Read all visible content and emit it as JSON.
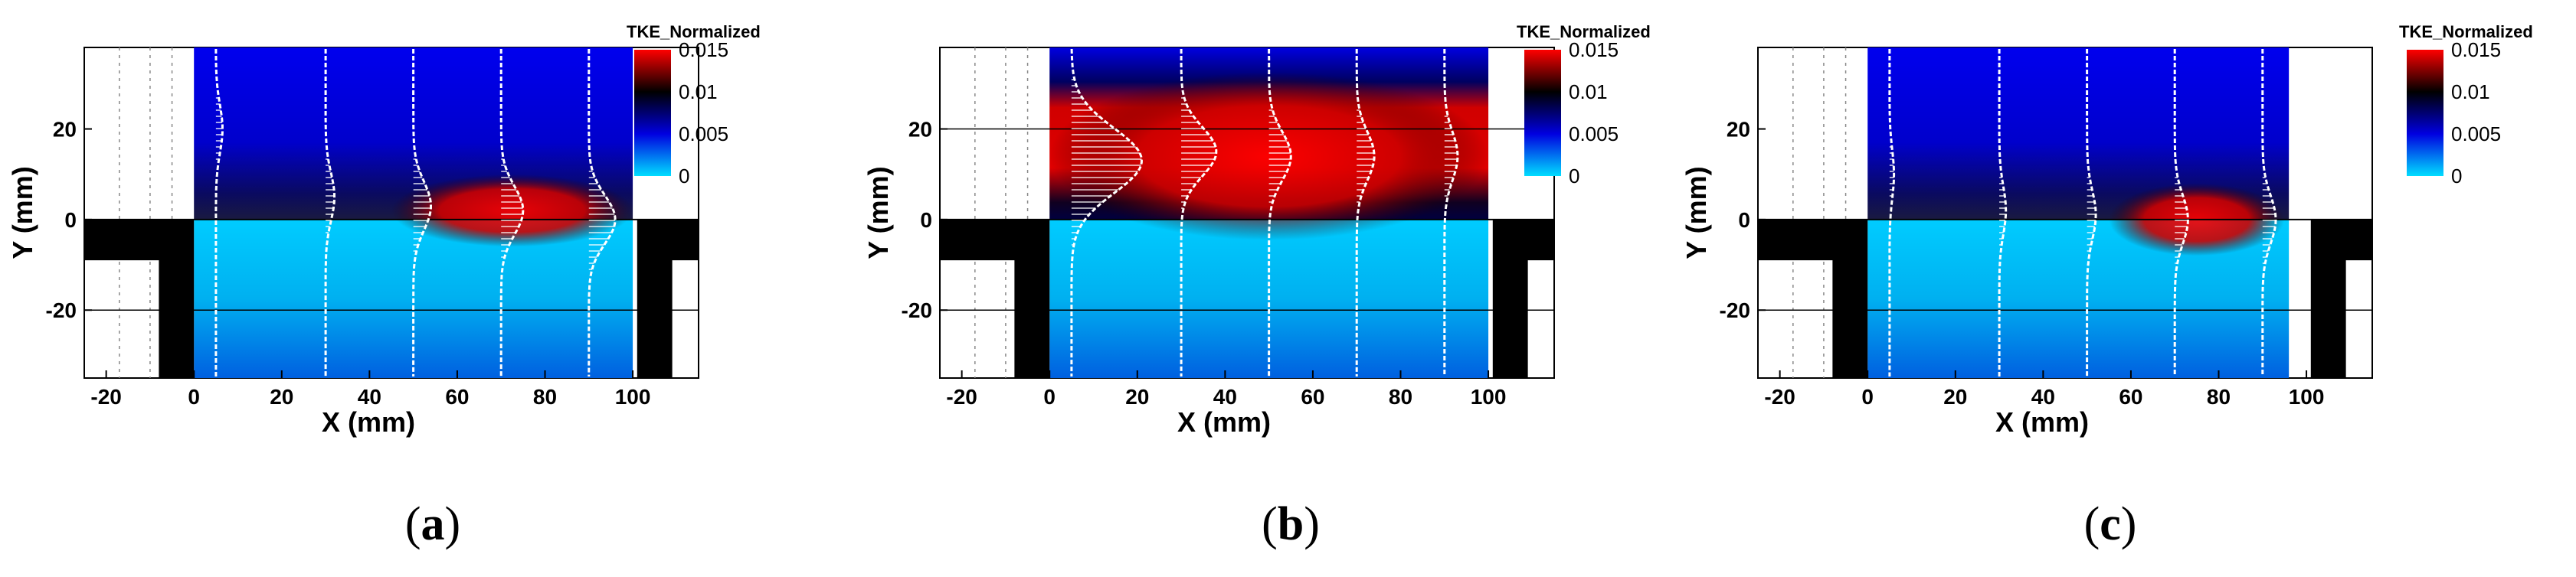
{
  "panels": [
    {
      "caption_open": "(",
      "caption_letter": "a",
      "caption_close": ")"
    },
    {
      "caption_open": "(",
      "caption_letter": "b",
      "caption_close": ")"
    },
    {
      "caption_open": "(",
      "caption_letter": "c",
      "caption_close": ")"
    }
  ],
  "chart_data": [
    {
      "type": "heatmap",
      "title": "",
      "xlabel": "X (mm)",
      "ylabel": "Y (mm)",
      "xlim": [
        -25,
        115
      ],
      "ylim": [
        -35,
        38
      ],
      "x_ticks": [
        -20,
        0,
        20,
        40,
        60,
        80,
        100
      ],
      "y_ticks": [
        -20,
        0,
        20
      ],
      "colorbar": {
        "title": "TKE_Normalized",
        "ticks": [
          "0.015",
          "0.01",
          "0.005",
          "0"
        ],
        "tick_values": [
          0.015,
          0.01,
          0.005,
          0
        ],
        "range": [
          0,
          0.015
        ],
        "colors": [
          "#00ddff",
          "#0000e0",
          "#000000",
          "#ff0000"
        ]
      },
      "profile_stations_x": [
        5,
        30,
        50,
        70,
        90
      ],
      "profile_peak_x_offset_mm": [
        1.5,
        2,
        4,
        5,
        6
      ],
      "profile_peak_y": [
        20,
        5,
        3,
        2,
        0
      ],
      "high_tke_region": {
        "x_range": [
          45,
          100
        ],
        "y_center": 2
      }
    },
    {
      "type": "heatmap",
      "title": "",
      "xlabel": "X (mm)",
      "ylabel": "Y (mm)",
      "xlim": [
        -25,
        115
      ],
      "ylim": [
        -35,
        38
      ],
      "x_ticks": [
        -20,
        0,
        20,
        40,
        60,
        80,
        100
      ],
      "y_ticks": [
        -20,
        0,
        20
      ],
      "colorbar": {
        "title": "TKE_Normalized",
        "ticks": [
          "0.015",
          "0.01",
          "0.005",
          "0"
        ],
        "tick_values": [
          0.015,
          0.01,
          0.005,
          0
        ],
        "range": [
          0,
          0.015
        ],
        "colors": [
          "#00ddff",
          "#0000e0",
          "#000000",
          "#ff0000"
        ]
      },
      "profile_stations_x": [
        5,
        30,
        50,
        70,
        90
      ],
      "profile_peak_x_offset_mm": [
        16,
        8,
        5,
        4,
        3
      ],
      "profile_peak_y": [
        13,
        15,
        14,
        14,
        14
      ],
      "high_tke_region": {
        "x_range": [
          0,
          100
        ],
        "y_center": 14
      }
    },
    {
      "type": "heatmap",
      "title": "",
      "xlabel": "X (mm)",
      "ylabel": "Y (mm)",
      "xlim": [
        -25,
        115
      ],
      "ylim": [
        -35,
        38
      ],
      "x_ticks": [
        -20,
        0,
        20,
        40,
        60,
        80,
        100
      ],
      "y_ticks": [
        -20,
        0,
        20
      ],
      "colorbar": {
        "title": "TKE_Normalized",
        "ticks": [
          "0.015",
          "0.01",
          "0.005",
          "0"
        ],
        "tick_values": [
          0.015,
          0.01,
          0.005,
          0
        ],
        "range": [
          0,
          0.015
        ],
        "colors": [
          "#00ddff",
          "#0000e0",
          "#000000",
          "#ff0000"
        ]
      },
      "profile_stations_x": [
        5,
        30,
        50,
        70,
        90
      ],
      "profile_peak_x_offset_mm": [
        1,
        1.5,
        2,
        3,
        3
      ],
      "profile_peak_y": [
        10,
        2,
        1,
        0,
        0
      ],
      "high_tke_region": {
        "x_range": [
          55,
          95
        ],
        "y_center": 0
      }
    }
  ]
}
